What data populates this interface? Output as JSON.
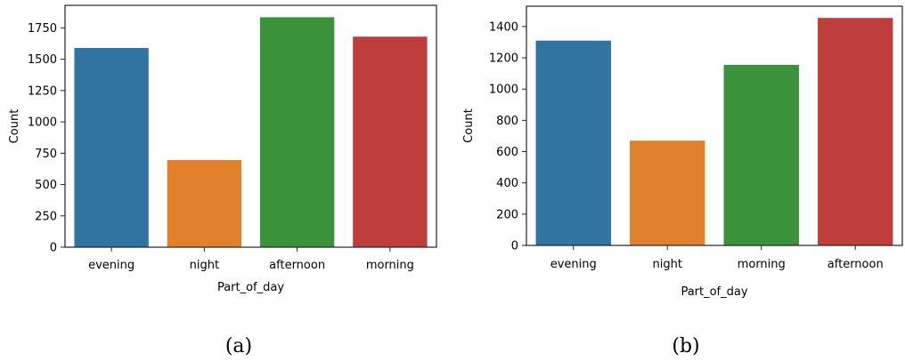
{
  "chart_data": [
    {
      "type": "bar",
      "categories": [
        "evening",
        "night",
        "afternoon",
        "morning"
      ],
      "values": [
        1590,
        695,
        1835,
        1680
      ],
      "colors": [
        "#3274a1",
        "#e1812c",
        "#3a923a",
        "#c03d3e"
      ],
      "xlabel": "Part_of_day",
      "ylabel": "Count",
      "ylim": [
        0,
        1930
      ],
      "yticks": [
        0,
        250,
        500,
        750,
        1000,
        1250,
        1500,
        1750
      ],
      "caption": "(a)"
    },
    {
      "type": "bar",
      "categories": [
        "evening",
        "night",
        "morning",
        "afternoon"
      ],
      "values": [
        1310,
        670,
        1155,
        1455
      ],
      "colors": [
        "#3274a1",
        "#e1812c",
        "#3a923a",
        "#c03d3e"
      ],
      "xlabel": "Part_of_day",
      "ylabel": "Count",
      "ylim": [
        0,
        1530
      ],
      "yticks": [
        0,
        200,
        400,
        600,
        800,
        1000,
        1200,
        1400
      ],
      "caption": "(b)"
    }
  ]
}
